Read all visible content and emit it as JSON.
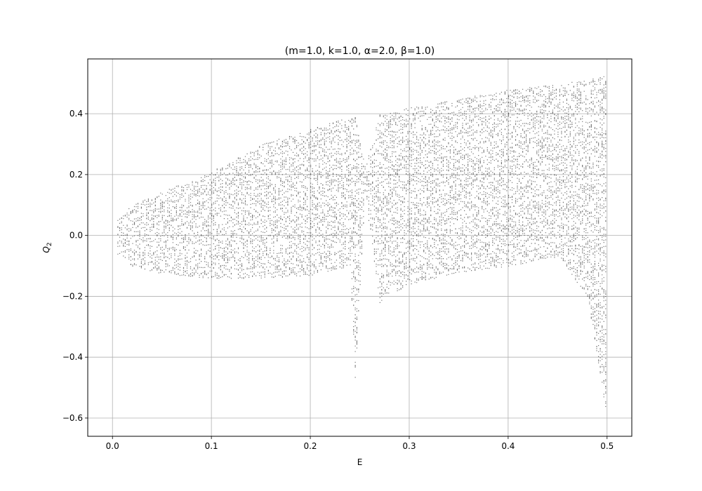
{
  "chart_data": {
    "type": "scatter",
    "title": "(m=1.0, k=1.0, α=2.0, β=1.0)",
    "xlabel": "E",
    "ylabel": "Q",
    "ylabel_subscript": "2",
    "xlim": [
      -0.025,
      0.525
    ],
    "ylim": [
      -0.66,
      0.58
    ],
    "grid": true,
    "x_ticks": [
      {
        "value": 0.0,
        "label": "0.0"
      },
      {
        "value": 0.1,
        "label": "0.1"
      },
      {
        "value": 0.2,
        "label": "0.2"
      },
      {
        "value": 0.3,
        "label": "0.3"
      },
      {
        "value": 0.4,
        "label": "0.4"
      },
      {
        "value": 0.5,
        "label": "0.5"
      }
    ],
    "y_ticks": [
      {
        "value": -0.6,
        "label": "−0.6"
      },
      {
        "value": -0.4,
        "label": "−0.4"
      },
      {
        "value": -0.2,
        "label": "−0.2"
      },
      {
        "value": 0.0,
        "label": "0.0"
      },
      {
        "value": 0.2,
        "label": "0.2"
      },
      {
        "value": 0.4,
        "label": "0.4"
      }
    ],
    "point_color": "#000000",
    "series": [
      {
        "values": [
          {
            "E": 0.005,
            "Q2_min": -0.06,
            "Q2_max": 0.06
          },
          {
            "E": 0.02,
            "Q2_min": -0.1,
            "Q2_max": 0.1
          },
          {
            "E": 0.05,
            "Q2_min": -0.125,
            "Q2_max": 0.145
          },
          {
            "E": 0.1,
            "Q2_min": -0.14,
            "Q2_max": 0.21
          },
          {
            "E": 0.15,
            "Q2_min": -0.14,
            "Q2_max": 0.3
          },
          {
            "E": 0.2,
            "Q2_min": -0.13,
            "Q2_max": 0.35
          },
          {
            "E": 0.24,
            "Q2_min": -0.1,
            "Q2_max": 0.39
          },
          {
            "E": 0.245,
            "Q2_min": -0.47,
            "Q2_max": 0.39
          },
          {
            "E": 0.255,
            "Q2_min": 0.14,
            "Q2_max": 0.23
          },
          {
            "E": 0.27,
            "Q2_min": -0.22,
            "Q2_max": 0.4
          },
          {
            "E": 0.3,
            "Q2_min": -0.16,
            "Q2_max": 0.42
          },
          {
            "E": 0.35,
            "Q2_min": -0.12,
            "Q2_max": 0.45
          },
          {
            "E": 0.4,
            "Q2_min": -0.1,
            "Q2_max": 0.48
          },
          {
            "E": 0.45,
            "Q2_min": -0.07,
            "Q2_max": 0.5
          },
          {
            "E": 0.48,
            "Q2_min": -0.2,
            "Q2_max": 0.51
          },
          {
            "E": 0.5,
            "Q2_min": -0.61,
            "Q2_max": 0.53
          }
        ]
      }
    ]
  }
}
